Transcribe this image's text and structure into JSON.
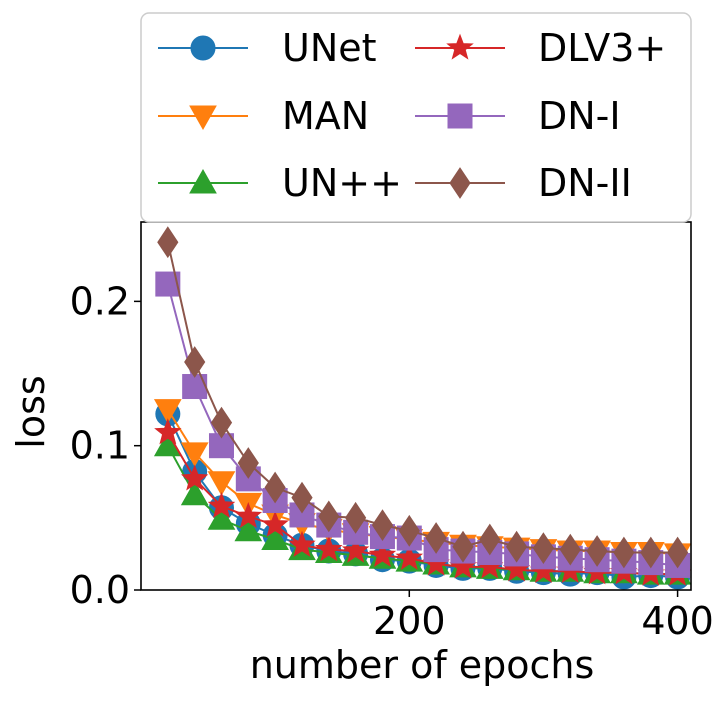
{
  "chart_data": {
    "type": "line",
    "xlabel": "number of epochs",
    "ylabel": "loss",
    "xlim": [
      0,
      410
    ],
    "ylim": [
      0,
      0.255
    ],
    "xticks": [
      200,
      400
    ],
    "xtick_labels": [
      "200",
      "400"
    ],
    "yticks": [
      0.0,
      0.1,
      0.2
    ],
    "ytick_labels": [
      "0.0",
      "0.1",
      "0.2"
    ],
    "grid": false,
    "legend_placement": "top, above plot, 2 columns",
    "x": [
      20,
      40,
      60,
      80,
      100,
      120,
      140,
      160,
      180,
      200,
      220,
      240,
      260,
      280,
      300,
      320,
      340,
      360,
      380,
      400
    ],
    "series": [
      {
        "name": "UNet",
        "color": "#1f77b4",
        "marker": "circle",
        "values": [
          0.122,
          0.082,
          0.057,
          0.046,
          0.038,
          0.031,
          0.027,
          0.025,
          0.021,
          0.02,
          0.017,
          0.015,
          0.015,
          0.013,
          0.012,
          0.011,
          0.012,
          0.009,
          0.01,
          0.009
        ]
      },
      {
        "name": "MAN",
        "color": "#ff7f0e",
        "marker": "triangle-down",
        "values": [
          0.125,
          0.095,
          0.075,
          0.06,
          0.052,
          0.046,
          0.042,
          0.039,
          0.037,
          0.035,
          0.033,
          0.031,
          0.03,
          0.029,
          0.028,
          0.027,
          0.027,
          0.026,
          0.026,
          0.025
        ]
      },
      {
        "name": "UN++",
        "color": "#2ca02c",
        "marker": "triangle-up",
        "values": [
          0.1,
          0.066,
          0.049,
          0.041,
          0.035,
          0.028,
          0.026,
          0.024,
          0.022,
          0.02,
          0.018,
          0.016,
          0.015,
          0.014,
          0.013,
          0.013,
          0.012,
          0.012,
          0.011,
          0.011
        ]
      },
      {
        "name": "DLV3+",
        "color": "#d62728",
        "marker": "star",
        "values": [
          0.109,
          0.077,
          0.058,
          0.051,
          0.045,
          0.031,
          0.028,
          0.027,
          0.024,
          0.022,
          0.018,
          0.016,
          0.016,
          0.014,
          0.013,
          0.013,
          0.012,
          0.012,
          0.011,
          0.011
        ]
      },
      {
        "name": "DN-I",
        "color": "#9467bd",
        "marker": "square",
        "values": [
          0.212,
          0.141,
          0.1,
          0.077,
          0.062,
          0.052,
          0.045,
          0.04,
          0.037,
          0.036,
          0.028,
          0.027,
          0.026,
          0.025,
          0.023,
          0.022,
          0.021,
          0.02,
          0.019,
          0.017
        ]
      },
      {
        "name": "DN-II",
        "color": "#8c564b",
        "marker": "diamond",
        "values": [
          0.241,
          0.158,
          0.116,
          0.088,
          0.071,
          0.064,
          0.051,
          0.05,
          0.045,
          0.041,
          0.036,
          0.03,
          0.035,
          0.03,
          0.029,
          0.028,
          0.027,
          0.026,
          0.026,
          0.026
        ]
      }
    ]
  }
}
